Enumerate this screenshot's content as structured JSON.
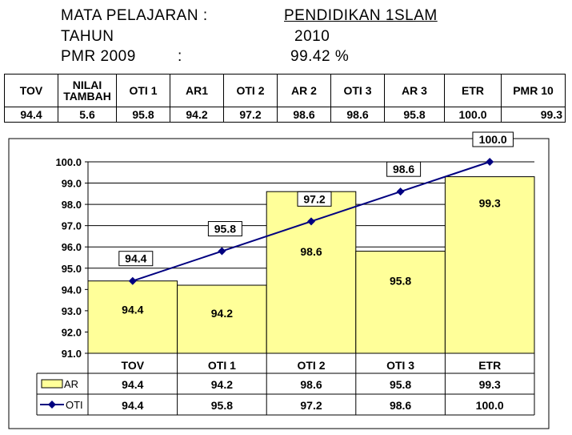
{
  "header": {
    "subject_label": "MATA PELAJARAN :",
    "subject_value": "PENDIDIKAN 1SLAM",
    "year_label": "TAHUN",
    "year_value": "2010",
    "pmr_label": "PMR 2009",
    "pmr_colon": ":",
    "pmr_value": "99.42 %"
  },
  "summary_table": {
    "headers": [
      [
        "TOV"
      ],
      [
        "NILAI",
        "TAMBAH"
      ],
      [
        "OTI 1"
      ],
      [
        "AR1"
      ],
      [
        "OTI 2"
      ],
      [
        "AR 2"
      ],
      [
        "OTI 3"
      ],
      [
        "AR 3"
      ],
      [
        "ETR"
      ],
      [
        "PMR 10"
      ]
    ],
    "values": [
      "94.4",
      "5.6",
      "95.8",
      "94.2",
      "97.2",
      "98.6",
      "98.6",
      "95.8",
      "100.0",
      "99.3"
    ]
  },
  "colors": {
    "bar_fill": "#ffff99",
    "line": "#000080"
  },
  "chart_data": {
    "type": "bar",
    "categories": [
      "TOV",
      "OTI 1",
      "OTI 2",
      "OTI 3",
      "ETR"
    ],
    "series": [
      {
        "name": "AR",
        "type": "bar",
        "values": [
          94.4,
          94.2,
          98.6,
          95.8,
          99.3
        ],
        "labels": [
          "94.4",
          "94.2",
          "98.6",
          "95.8",
          "99.3"
        ]
      },
      {
        "name": "OTI",
        "type": "line",
        "marker": "diamond",
        "values": [
          94.4,
          95.8,
          97.2,
          98.6,
          100.0
        ],
        "labels": [
          "94.4",
          "95.8",
          "97.2",
          "98.6",
          "100.0"
        ]
      }
    ],
    "ylim": [
      91.0,
      100.0
    ],
    "yticks": [
      "91.0",
      "92.0",
      "93.0",
      "94.0",
      "95.0",
      "96.0",
      "97.0",
      "98.0",
      "99.0",
      "100.0"
    ],
    "grid": true,
    "legend": "data-table"
  }
}
